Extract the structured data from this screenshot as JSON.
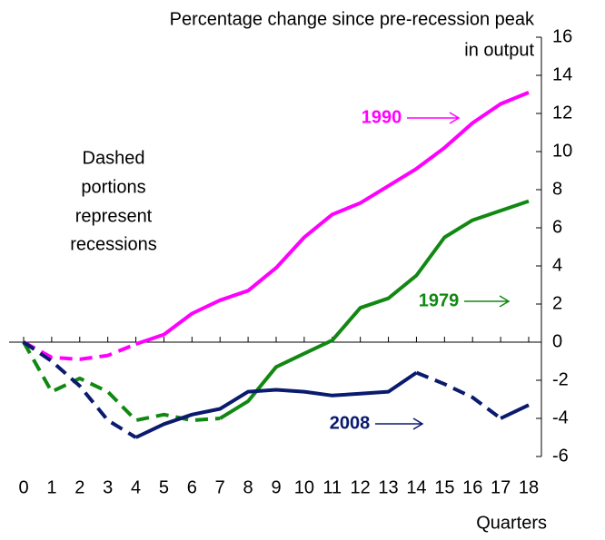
{
  "chart_data": {
    "type": "line",
    "title": [
      "Percentage change since pre-recession peak",
      "in output"
    ],
    "x_label": "Quarters",
    "x": [
      0,
      1,
      2,
      3,
      4,
      5,
      6,
      7,
      8,
      9,
      10,
      11,
      12,
      13,
      14,
      15,
      16,
      17,
      18
    ],
    "xlim": [
      0,
      18
    ],
    "xticks": [
      0,
      1,
      2,
      3,
      4,
      5,
      6,
      7,
      8,
      9,
      10,
      11,
      12,
      13,
      14,
      15,
      16,
      17,
      18
    ],
    "ylim": [
      -6,
      16
    ],
    "yticks": [
      -6,
      -4,
      -2,
      0,
      2,
      4,
      6,
      8,
      10,
      12,
      14,
      16
    ],
    "y_axis_side": "right",
    "series": [
      {
        "name": "1990",
        "color": "#ff00ff",
        "dashed_segments": [
          [
            0,
            4
          ]
        ],
        "values": [
          0,
          -0.8,
          -0.9,
          -0.7,
          -0.1,
          0.4,
          1.5,
          2.2,
          2.7,
          3.9,
          5.5,
          6.7,
          7.3,
          8.2,
          9.1,
          10.2,
          11.5,
          12.5,
          13.1
        ]
      },
      {
        "name": "1979",
        "color": "#118811",
        "dashed_segments": [
          [
            0,
            7
          ]
        ],
        "values": [
          0,
          -2.6,
          -1.9,
          -2.6,
          -4.1,
          -3.8,
          -4.1,
          -4.0,
          -3.1,
          -1.3,
          -0.6,
          0.1,
          1.8,
          2.3,
          3.5,
          5.5,
          6.4,
          6.9,
          7.4
        ]
      },
      {
        "name": "2008",
        "color": "#0a1a6e",
        "dashed_segments": [
          [
            0,
            4
          ],
          [
            14,
            17
          ]
        ],
        "values": [
          0,
          -1.0,
          -2.3,
          -4.1,
          -5.0,
          -4.3,
          -3.8,
          -3.5,
          -2.6,
          -2.5,
          -2.6,
          -2.8,
          -2.7,
          -2.6,
          -1.6,
          -2.2,
          -2.9,
          -4.0,
          -3.3
        ]
      }
    ],
    "annotation": [
      "Dashed",
      "portions",
      "represent",
      "recessions"
    ]
  }
}
